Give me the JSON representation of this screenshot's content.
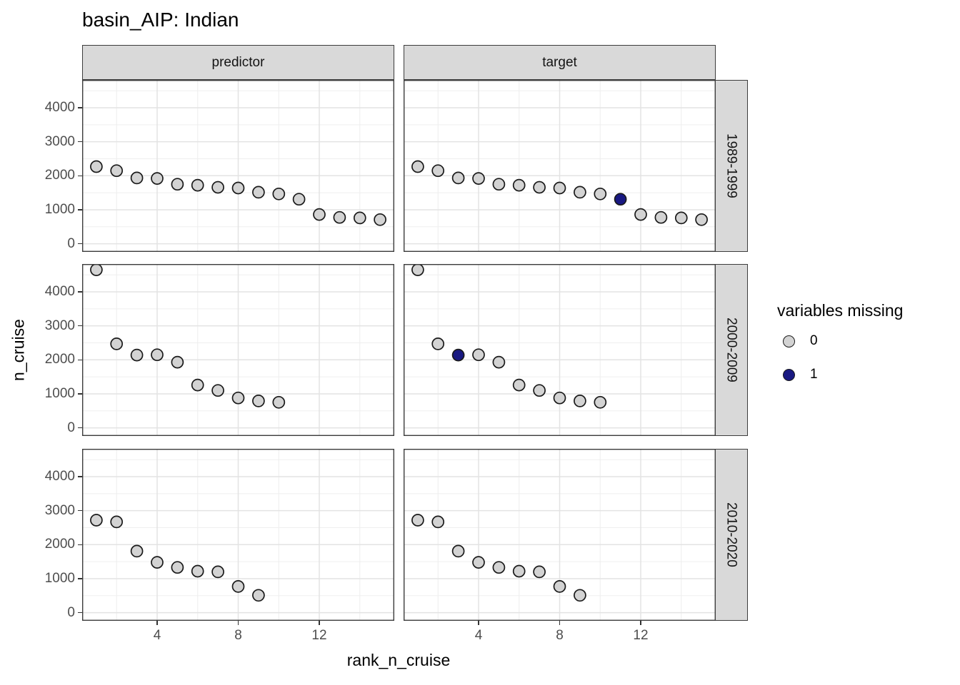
{
  "title": "basin_AIP: Indian",
  "axes": {
    "x_title": "rank_n_cruise",
    "y_title": "n_cruise",
    "x_ticks": [
      4,
      8,
      12
    ],
    "x_minor": [
      2,
      6,
      10,
      14
    ],
    "y_ticks": [
      0,
      1000,
      2000,
      3000,
      4000
    ],
    "y_minor": [
      500,
      1500,
      2500,
      3500,
      4500
    ],
    "x_domain": [
      0.3,
      15.7
    ],
    "y_domain": [
      -240,
      4820
    ]
  },
  "facets": {
    "columns": [
      "predictor",
      "target"
    ],
    "rows": [
      "1989-1999",
      "2000-2009",
      "2010-2020"
    ]
  },
  "legend": {
    "title": "variables missing",
    "items": [
      {
        "label": "0",
        "color": "#d3d3d3"
      },
      {
        "label": "1",
        "color": "#191982"
      }
    ]
  },
  "colors": {
    "point_fill_missing0": "#d3d3d3",
    "point_fill_missing1": "#191982",
    "point_stroke": "#1a1a1a",
    "panel_bg": "#ffffff",
    "panel_border": "#3c3c3c",
    "grid_major": "#e3e3e3",
    "grid_minor": "#efefef",
    "tick_label": "#4d4d4d",
    "tick_mark": "#333333",
    "strip_bg": "#d9d9d9"
  },
  "chart_data": {
    "type": "scatter",
    "title": "basin_AIP: Indian",
    "xlabel": "rank_n_cruise",
    "ylabel": "n_cruise",
    "xlim": [
      0.3,
      15.7
    ],
    "ylim": [
      -240,
      4820
    ],
    "grid": true,
    "legend_position": "right",
    "legend_title": "variables missing",
    "panels": [
      {
        "facet_col": "predictor",
        "facet_row": "1989-1999",
        "x": [
          1,
          2,
          3,
          4,
          5,
          6,
          7,
          8,
          9,
          10,
          11,
          12,
          13,
          14,
          15
        ],
        "y": [
          2270,
          2150,
          1935,
          1920,
          1750,
          1720,
          1660,
          1640,
          1515,
          1465,
          1310,
          860,
          775,
          760,
          710
        ],
        "missing": [
          0,
          0,
          0,
          0,
          0,
          0,
          0,
          0,
          0,
          0,
          0,
          0,
          0,
          0,
          0
        ]
      },
      {
        "facet_col": "target",
        "facet_row": "1989-1999",
        "x": [
          1,
          2,
          3,
          4,
          5,
          6,
          7,
          8,
          9,
          10,
          11,
          12,
          13,
          14,
          15
        ],
        "y": [
          2270,
          2150,
          1935,
          1920,
          1750,
          1720,
          1660,
          1640,
          1515,
          1465,
          1310,
          860,
          775,
          760,
          710
        ],
        "missing": [
          0,
          0,
          0,
          0,
          0,
          0,
          0,
          0,
          0,
          0,
          1,
          0,
          0,
          0,
          0
        ]
      },
      {
        "facet_col": "predictor",
        "facet_row": "2000-2009",
        "x": [
          1,
          2,
          3,
          4,
          5,
          6,
          7,
          8,
          9,
          10
        ],
        "y": [
          4650,
          2470,
          2140,
          2150,
          1930,
          1260,
          1100,
          880,
          790,
          750
        ],
        "missing": [
          0,
          0,
          0,
          0,
          0,
          0,
          0,
          0,
          0,
          0
        ]
      },
      {
        "facet_col": "target",
        "facet_row": "2000-2009",
        "x": [
          1,
          2,
          3,
          4,
          5,
          6,
          7,
          8,
          9,
          10
        ],
        "y": [
          4650,
          2470,
          2140,
          2150,
          1930,
          1260,
          1100,
          880,
          790,
          750
        ],
        "missing": [
          0,
          0,
          1,
          0,
          0,
          0,
          0,
          0,
          0,
          0
        ]
      },
      {
        "facet_col": "predictor",
        "facet_row": "2010-2020",
        "x": [
          1,
          2,
          3,
          4,
          5,
          6,
          7,
          8,
          9
        ],
        "y": [
          2720,
          2670,
          1810,
          1480,
          1330,
          1220,
          1200,
          770,
          510
        ],
        "missing": [
          0,
          0,
          0,
          0,
          0,
          0,
          0,
          0,
          0
        ]
      },
      {
        "facet_col": "target",
        "facet_row": "2010-2020",
        "x": [
          1,
          2,
          3,
          4,
          5,
          6,
          7,
          8,
          9
        ],
        "y": [
          2720,
          2670,
          1810,
          1480,
          1330,
          1220,
          1200,
          770,
          510
        ],
        "missing": [
          0,
          0,
          0,
          0,
          0,
          0,
          0,
          0,
          0
        ]
      }
    ]
  }
}
